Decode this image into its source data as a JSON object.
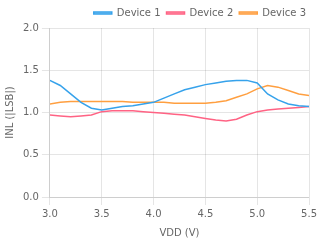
{
  "chart_data": {
    "type": "line",
    "xlabel": "VDD (V)",
    "ylabel": "INL (|LSB|)",
    "x": [
      3.0,
      3.1,
      3.2,
      3.3,
      3.4,
      3.5,
      3.6,
      3.7,
      3.8,
      3.9,
      4.0,
      4.1,
      4.2,
      4.3,
      4.4,
      4.5,
      4.6,
      4.7,
      4.8,
      4.9,
      5.0,
      5.1,
      5.2,
      5.3,
      5.4,
      5.5
    ],
    "series": [
      {
        "name": "Device 1",
        "values": [
          1.38,
          1.32,
          1.22,
          1.12,
          1.05,
          1.03,
          1.05,
          1.07,
          1.08,
          1.1,
          1.12,
          1.17,
          1.22,
          1.27,
          1.3,
          1.33,
          1.35,
          1.37,
          1.38,
          1.38,
          1.35,
          1.22,
          1.15,
          1.1,
          1.08,
          1.07
        ]
      },
      {
        "name": "Device 2",
        "values": [
          0.97,
          0.96,
          0.95,
          0.96,
          0.97,
          1.01,
          1.02,
          1.02,
          1.02,
          1.01,
          1.0,
          0.99,
          0.98,
          0.97,
          0.95,
          0.93,
          0.91,
          0.9,
          0.92,
          0.97,
          1.01,
          1.03,
          1.04,
          1.05,
          1.06,
          1.07
        ]
      },
      {
        "name": "Device 3",
        "values": [
          1.1,
          1.12,
          1.13,
          1.13,
          1.13,
          1.13,
          1.13,
          1.13,
          1.12,
          1.12,
          1.12,
          1.12,
          1.11,
          1.11,
          1.11,
          1.11,
          1.12,
          1.14,
          1.18,
          1.22,
          1.28,
          1.32,
          1.3,
          1.26,
          1.22,
          1.2
        ]
      }
    ],
    "xlim": [
      3,
      5.5
    ],
    "ylim": [
      0,
      2
    ],
    "xticks": [
      {
        "value": 3,
        "label": "3.0"
      },
      3.5,
      {
        "value": 4,
        "label": "4.0"
      },
      4.5,
      {
        "value": 5,
        "label": "5.0"
      },
      5.5
    ],
    "yticks": [
      {
        "value": 0,
        "label": "0.0"
      },
      0.5,
      {
        "value": 1,
        "label": "1.0"
      },
      1.5,
      {
        "value": 2,
        "label": "2.0"
      }
    ],
    "grid": true,
    "legend": "upper right"
  }
}
